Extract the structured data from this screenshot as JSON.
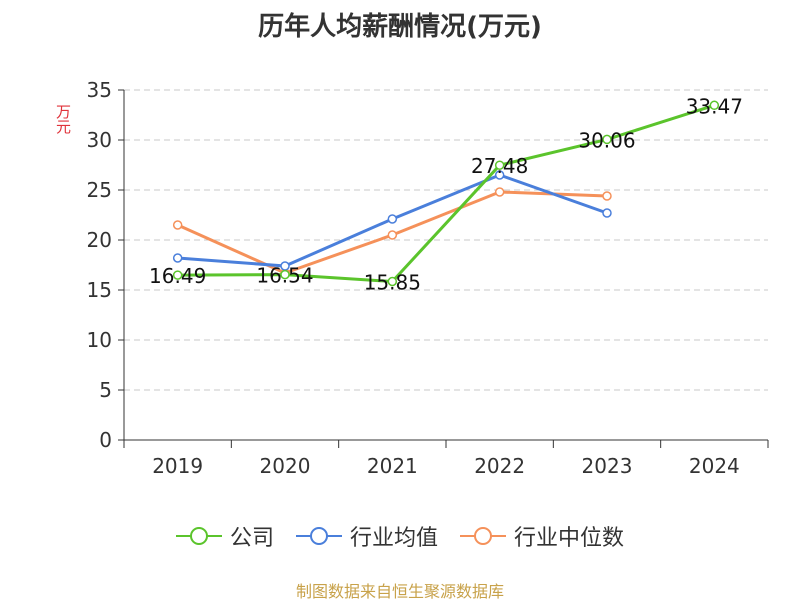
{
  "chart_data": {
    "type": "line",
    "title": "历年人均薪酬情况(万元)",
    "ylabel": "万元",
    "xlabel": "",
    "categories": [
      "2019",
      "2020",
      "2021",
      "2022",
      "2023",
      "2024"
    ],
    "ylim": [
      0,
      35
    ],
    "yticks": [
      0,
      5,
      10,
      15,
      20,
      25,
      30,
      35
    ],
    "grid": true,
    "legend_position": "bottom",
    "series": [
      {
        "name": "公司",
        "color": "#5bc42c",
        "show_labels": true,
        "values": [
          16.49,
          16.54,
          15.85,
          27.48,
          30.06,
          33.47
        ],
        "labels": [
          "16.49",
          "16.54",
          "15.85",
          "27.48",
          "30.06",
          "33.47"
        ]
      },
      {
        "name": "行业均值",
        "color": "#4a7fdb",
        "show_labels": false,
        "values": [
          18.2,
          17.4,
          22.1,
          26.5,
          22.7,
          null
        ]
      },
      {
        "name": "行业中位数",
        "color": "#f5915a",
        "show_labels": false,
        "values": [
          21.5,
          16.7,
          20.5,
          24.8,
          24.4,
          null
        ]
      }
    ]
  },
  "source_note": "制图数据来自恒生聚源数据库"
}
